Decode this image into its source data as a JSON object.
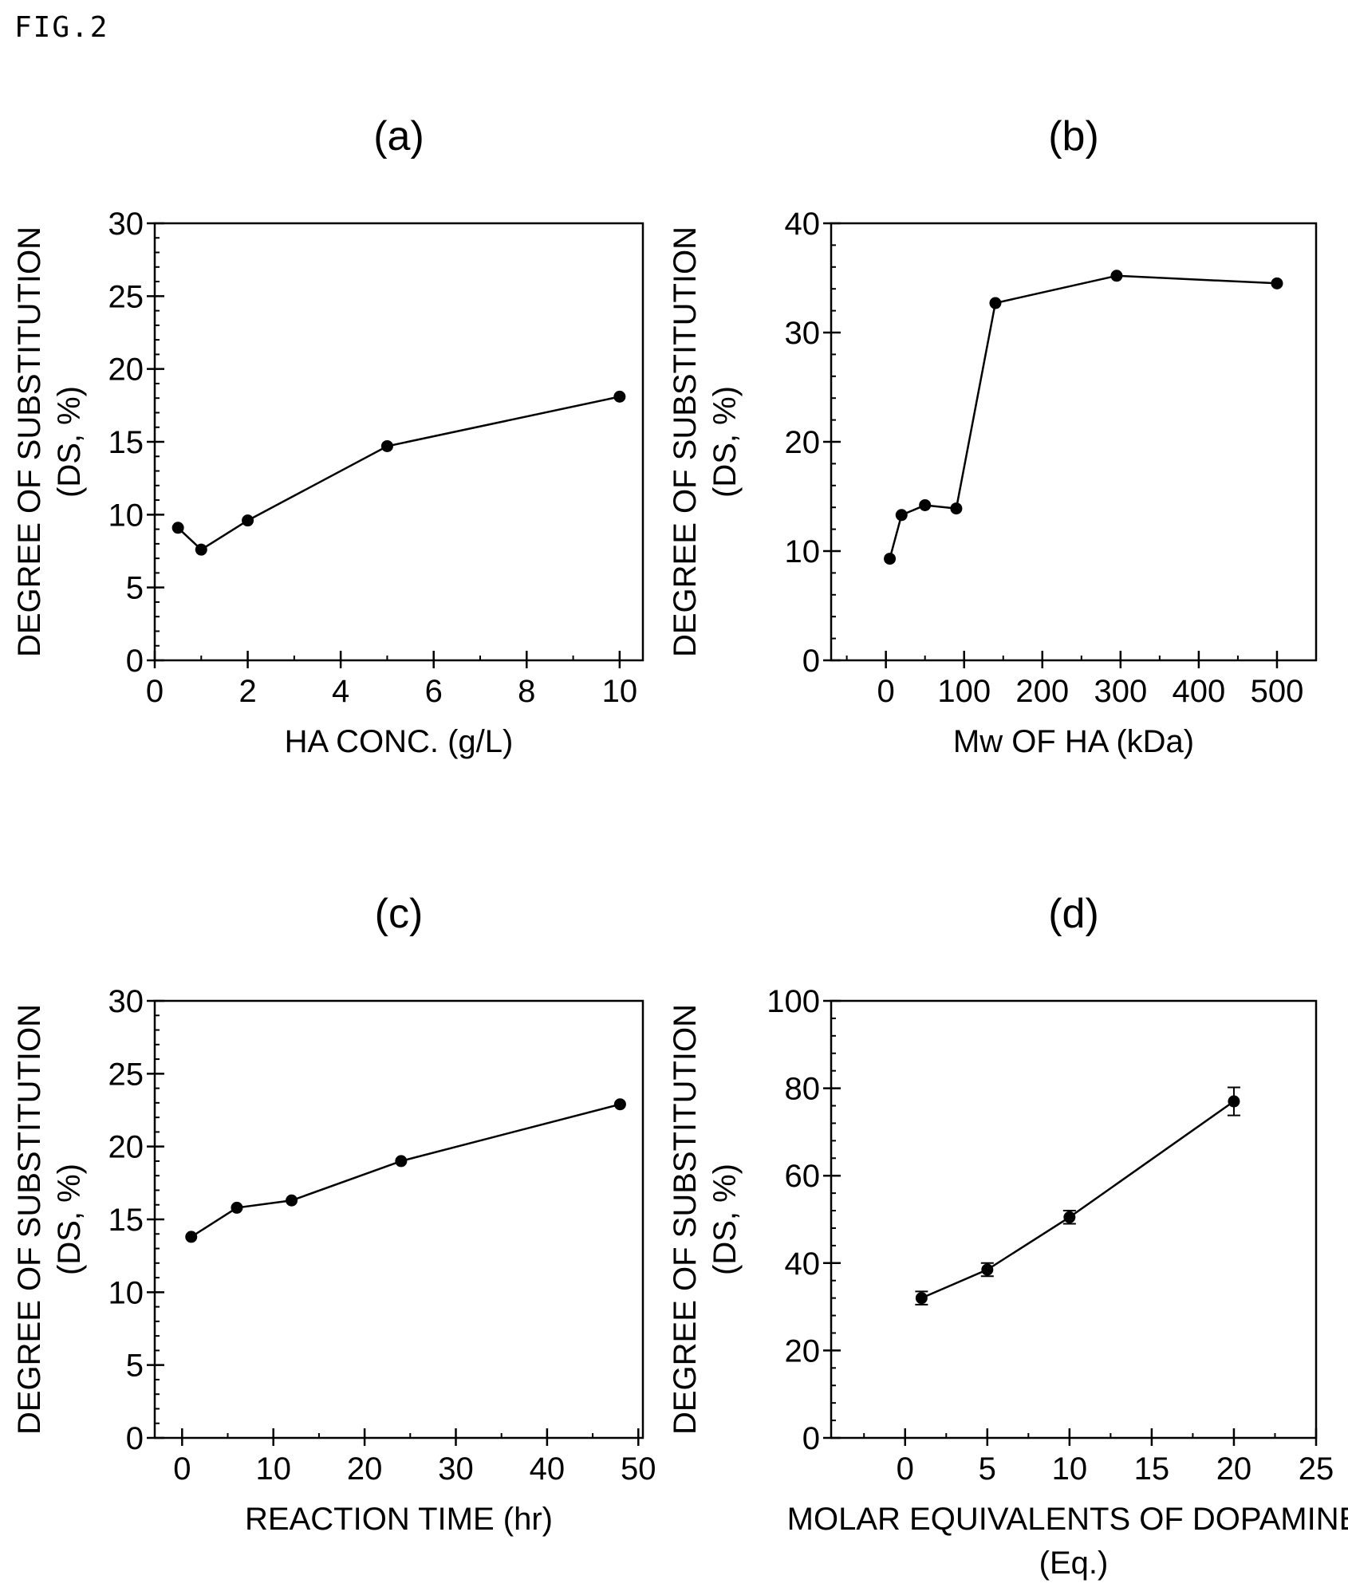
{
  "figure_label": "FIG.2",
  "chart_data": [
    {
      "id": "a",
      "type": "line",
      "title": "(a)",
      "xlabel": "HA CONC. (g/L)",
      "ylabel": "DEGREE OF SUBSTITUTION",
      "ylabel2": "(DS, %)",
      "xlim": [
        0,
        10.5
      ],
      "ylim": [
        0,
        30
      ],
      "xticks": [
        0,
        2,
        4,
        6,
        8,
        10
      ],
      "yticks": [
        0,
        5,
        10,
        15,
        20,
        25,
        30
      ],
      "series": [
        {
          "x": [
            0.5,
            1,
            2,
            5,
            10
          ],
          "y": [
            9.1,
            7.6,
            9.6,
            14.7,
            18.1
          ]
        }
      ]
    },
    {
      "id": "b",
      "type": "line",
      "title": "(b)",
      "xlabel": "Mw OF HA (kDa)",
      "ylabel": "DEGREE OF SUBSTITUTION",
      "ylabel2": "(DS, %)",
      "xlim": [
        -70,
        550
      ],
      "ylim": [
        0,
        40
      ],
      "xticks": [
        0,
        100,
        200,
        300,
        400,
        500
      ],
      "yticks": [
        0,
        10,
        20,
        30,
        40
      ],
      "series": [
        {
          "x": [
            5,
            20,
            50,
            90,
            140,
            295,
            500
          ],
          "y": [
            9.3,
            13.3,
            14.2,
            13.9,
            32.7,
            35.2,
            34.5
          ]
        }
      ]
    },
    {
      "id": "c",
      "type": "line",
      "title": "(c)",
      "xlabel": "REACTION TIME (hr)",
      "ylabel": "DEGREE OF SUBSTITUTION",
      "ylabel2": "(DS, %)",
      "xlim": [
        -3,
        50.5
      ],
      "ylim": [
        0,
        30
      ],
      "xticks": [
        0,
        10,
        20,
        30,
        40,
        50
      ],
      "yticks": [
        0,
        5,
        10,
        15,
        20,
        25,
        30
      ],
      "series": [
        {
          "x": [
            1,
            6,
            12,
            24,
            48
          ],
          "y": [
            13.8,
            15.8,
            16.3,
            19.0,
            22.9
          ]
        }
      ]
    },
    {
      "id": "d",
      "type": "line",
      "title": "(d)",
      "xlabel": "MOLAR EQUIVALENTS OF DOPAMINE",
      "xlabel2": "(Eq.)",
      "ylabel": "DEGREE OF SUBSTITUTION",
      "ylabel2": "(DS, %)",
      "xlim": [
        -4.5,
        25
      ],
      "ylim": [
        0,
        100
      ],
      "xticks": [
        0,
        5,
        10,
        15,
        20,
        25
      ],
      "yticks": [
        0,
        20,
        40,
        60,
        80,
        100
      ],
      "series": [
        {
          "x": [
            1,
            5,
            10,
            20
          ],
          "y": [
            32,
            38.5,
            50.5,
            77
          ],
          "err": [
            1.5,
            1.5,
            1.5,
            3.2
          ]
        }
      ]
    }
  ]
}
